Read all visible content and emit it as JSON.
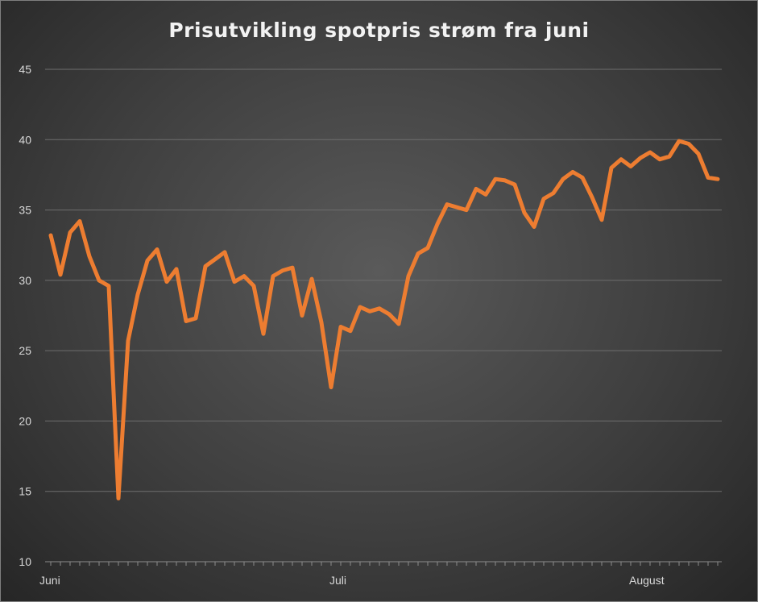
{
  "chart_data": {
    "type": "line",
    "title": "Prisutvikling spotpris strøm fra juni",
    "xlabel": "",
    "ylabel": "",
    "ylim": [
      10,
      45
    ],
    "yticks": [
      10,
      15,
      20,
      25,
      30,
      35,
      40,
      45
    ],
    "x_tick_labels": [
      {
        "label": "Juni",
        "index": 0
      },
      {
        "label": "Juli",
        "index": 30
      },
      {
        "label": "August",
        "index": 61
      }
    ],
    "grid": true,
    "legend": "none",
    "series": [
      {
        "color": "#ed7d31",
        "values": [
          33.2,
          30.4,
          33.4,
          34.2,
          31.7,
          30.0,
          29.6,
          14.5,
          25.7,
          29.0,
          31.4,
          32.2,
          29.9,
          30.8,
          27.1,
          27.3,
          31.0,
          31.5,
          32.0,
          29.9,
          30.3,
          29.6,
          26.2,
          30.3,
          30.7,
          30.9,
          27.5,
          30.1,
          27.0,
          22.4,
          26.7,
          26.4,
          28.1,
          27.8,
          28.0,
          27.6,
          26.9,
          30.3,
          31.9,
          32.3,
          34.0,
          35.4,
          35.2,
          35.0,
          36.5,
          36.1,
          37.2,
          37.1,
          36.8,
          34.8,
          33.8,
          35.8,
          36.2,
          37.2,
          37.7,
          37.3,
          35.9,
          34.3,
          38.0,
          38.6,
          38.1,
          38.7,
          39.1,
          38.6,
          38.8,
          39.9,
          39.7,
          39.0,
          37.3,
          37.2
        ]
      }
    ]
  }
}
